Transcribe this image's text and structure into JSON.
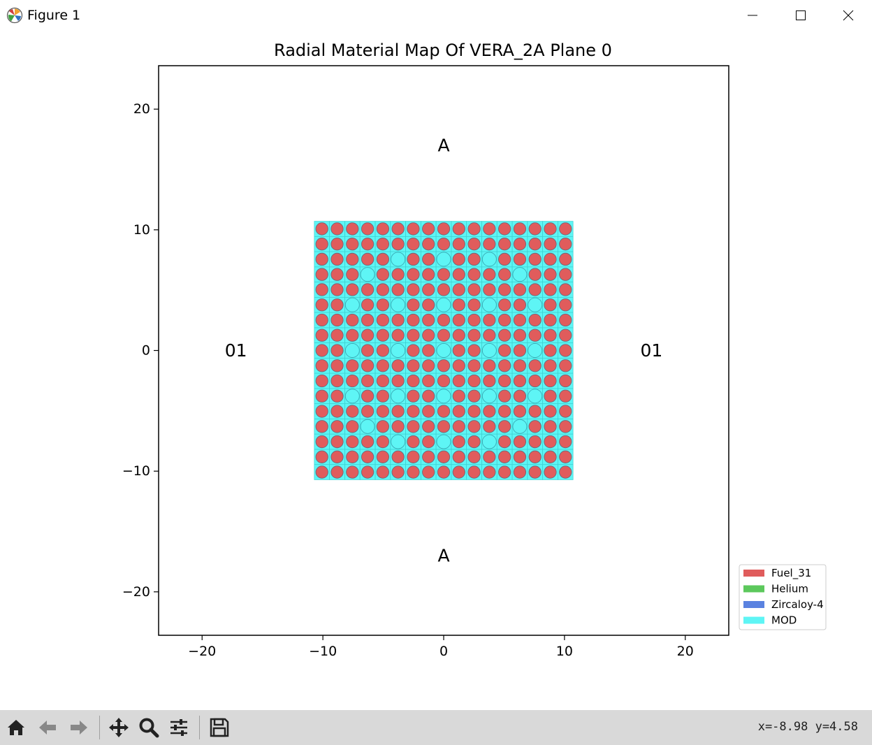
{
  "window": {
    "title": "Figure 1",
    "icons": {
      "app": "matplotlib-logo-icon",
      "minimize": "minimize-icon",
      "maximize": "maximize-icon",
      "close": "close-icon"
    }
  },
  "toolbar": {
    "buttons": [
      {
        "name": "home-button",
        "icon": "home-icon"
      },
      {
        "name": "back-button",
        "icon": "arrow-left-icon"
      },
      {
        "name": "forward-button",
        "icon": "arrow-right-icon"
      },
      {
        "name": "pan-button",
        "icon": "move-icon"
      },
      {
        "name": "zoom-button",
        "icon": "magnifier-icon"
      },
      {
        "name": "configure-subplots-button",
        "icon": "sliders-icon"
      },
      {
        "name": "save-button",
        "icon": "floppy-disk-icon"
      }
    ],
    "coordinates": "x=-8.98 y=4.58"
  },
  "chart_data": {
    "type": "heatmap",
    "title": "Radial Material Map Of VERA_2A Plane 0",
    "xlabel": "",
    "ylabel": "",
    "xlim": [
      -23.6,
      23.6
    ],
    "ylim": [
      -23.6,
      23.6
    ],
    "xticks": [
      -20,
      -10,
      0,
      10,
      20
    ],
    "yticks": [
      -20,
      -10,
      0,
      10,
      20
    ],
    "xticklabels": [
      "−20",
      "−10",
      "0",
      "10",
      "20"
    ],
    "yticklabels": [
      "−20",
      "−10",
      "0",
      "10",
      "20"
    ],
    "grid": false,
    "legend_position": "lower-right outside plot",
    "materials": [
      {
        "name": "Fuel_31",
        "color": "#e05c5c"
      },
      {
        "name": "Helium",
        "color": "#5cc85c"
      },
      {
        "name": "Zircaloy-4",
        "color": "#5a82e0"
      },
      {
        "name": "MOD",
        "color": "#5ef5f5"
      }
    ],
    "lattice": {
      "size": 17,
      "pitch": 1.26,
      "extent": [
        -10.71,
        10.71
      ],
      "guide_tube_positions": [
        [
          2,
          5
        ],
        [
          2,
          8
        ],
        [
          2,
          11
        ],
        [
          3,
          3
        ],
        [
          3,
          13
        ],
        [
          5,
          2
        ],
        [
          5,
          5
        ],
        [
          5,
          8
        ],
        [
          5,
          11
        ],
        [
          5,
          14
        ],
        [
          8,
          2
        ],
        [
          8,
          5
        ],
        [
          8,
          8
        ],
        [
          8,
          11
        ],
        [
          8,
          14
        ],
        [
          11,
          2
        ],
        [
          11,
          5
        ],
        [
          11,
          8
        ],
        [
          11,
          11
        ],
        [
          11,
          14
        ],
        [
          13,
          3
        ],
        [
          13,
          13
        ],
        [
          14,
          5
        ],
        [
          14,
          8
        ],
        [
          14,
          11
        ]
      ]
    },
    "annotations": [
      {
        "text": "A",
        "x": 0,
        "y": 17
      },
      {
        "text": "A",
        "x": 0,
        "y": -17
      },
      {
        "text": "01",
        "x": -17.2,
        "y": 0
      },
      {
        "text": "01",
        "x": 17.2,
        "y": 0
      }
    ]
  }
}
